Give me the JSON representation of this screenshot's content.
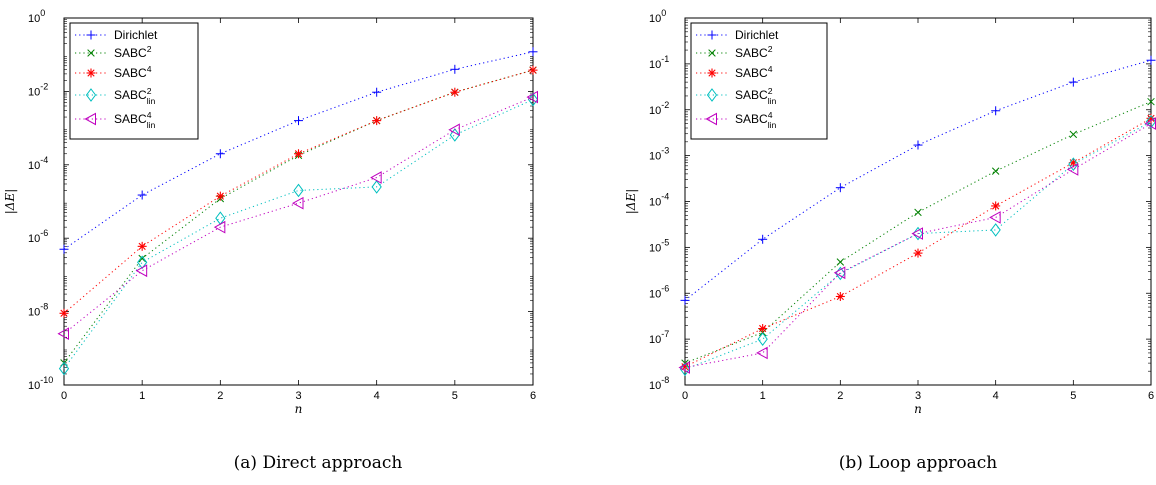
{
  "chart_data": [
    {
      "type": "line",
      "subtitle": "(a) Direct approach",
      "xlabel": "n",
      "ylabel": "|ΔE|",
      "xlim": [
        0,
        6
      ],
      "ylim": [
        1e-10,
        1
      ],
      "yscale": "log",
      "x_ticks": [
        "0",
        "1",
        "2",
        "3",
        "4",
        "5",
        "6"
      ],
      "y_ticks": [
        {
          "base": "10",
          "exp": "0",
          "v": 1
        },
        {
          "base": "10",
          "exp": "-2",
          "v": 0.01
        },
        {
          "base": "10",
          "exp": "-4",
          "v": 0.0001
        },
        {
          "base": "10",
          "exp": "-6",
          "v": 1e-06
        },
        {
          "base": "10",
          "exp": "-8",
          "v": 1e-08
        },
        {
          "base": "10",
          "exp": "-10",
          "v": 1e-10
        }
      ],
      "grid": false,
      "legend_position": "top-left",
      "x": [
        0,
        1,
        2,
        3,
        4,
        5,
        6
      ],
      "series": [
        {
          "name": "Dirichlet",
          "base": "SABC",
          "sup": "",
          "sub": "",
          "marker": "plus",
          "color": "#0000ff",
          "values": [
            5e-07,
            1.5e-05,
            0.0002,
            0.0016,
            0.0095,
            0.04,
            0.12
          ]
        },
        {
          "name": "SABC2",
          "base": "SABC",
          "sup": "2",
          "sub": "",
          "marker": "x",
          "color": "#008000",
          "values": [
            4e-10,
            2.8e-07,
            1.2e-05,
            0.00018,
            0.0016,
            0.0095,
            0.038
          ]
        },
        {
          "name": "SABC4",
          "base": "SABC",
          "sup": "4",
          "sub": "",
          "marker": "star",
          "color": "#ff0000",
          "values": [
            9e-09,
            6e-07,
            1.4e-05,
            0.0002,
            0.0016,
            0.0095,
            0.038
          ]
        },
        {
          "name": "SABC2lin",
          "base": "SABC",
          "sup": "2",
          "sub": "lin",
          "marker": "diamond",
          "color": "#00bfbf",
          "values": [
            2.8e-10,
            2.2e-07,
            3.5e-06,
            2e-05,
            2.5e-05,
            0.00065,
            0.006
          ]
        },
        {
          "name": "SABC4lin",
          "base": "SABC",
          "sup": "4",
          "sub": "lin",
          "marker": "triangle-left",
          "color": "#bf00bf",
          "values": [
            2.5e-09,
            1.3e-07,
            2e-06,
            9e-06,
            4.5e-05,
            0.0009,
            0.007
          ]
        }
      ]
    },
    {
      "type": "line",
      "subtitle": "(b) Loop approach",
      "xlabel": "n",
      "ylabel": "|ΔE|",
      "xlim": [
        0,
        6
      ],
      "ylim": [
        1e-08,
        1
      ],
      "yscale": "log",
      "x_ticks": [
        "0",
        "1",
        "2",
        "3",
        "4",
        "5",
        "6"
      ],
      "y_ticks": [
        {
          "base": "10",
          "exp": "0",
          "v": 1
        },
        {
          "base": "10",
          "exp": "-1",
          "v": 0.1
        },
        {
          "base": "10",
          "exp": "-2",
          "v": 0.01
        },
        {
          "base": "10",
          "exp": "-3",
          "v": 0.001
        },
        {
          "base": "10",
          "exp": "-4",
          "v": 0.0001
        },
        {
          "base": "10",
          "exp": "-5",
          "v": 1e-05
        },
        {
          "base": "10",
          "exp": "-6",
          "v": 1e-06
        },
        {
          "base": "10",
          "exp": "-7",
          "v": 1e-07
        },
        {
          "base": "10",
          "exp": "-8",
          "v": 1e-08
        }
      ],
      "grid": false,
      "legend_position": "top-left",
      "x": [
        0,
        1,
        2,
        3,
        4,
        5,
        6
      ],
      "series": [
        {
          "name": "Dirichlet",
          "base": "SABC",
          "sup": "",
          "sub": "",
          "marker": "plus",
          "color": "#0000ff",
          "values": [
            7e-07,
            1.5e-05,
            0.0002,
            0.0017,
            0.0095,
            0.04,
            0.12
          ]
        },
        {
          "name": "SABC2",
          "base": "SABC",
          "sup": "2",
          "sub": "",
          "marker": "x",
          "color": "#008000",
          "values": [
            3e-08,
            1.4e-07,
            4.8e-06,
            5.8e-05,
            0.00046,
            0.0029,
            0.015
          ]
        },
        {
          "name": "SABC4",
          "base": "SABC",
          "sup": "4",
          "sub": "",
          "marker": "star",
          "color": "#ff0000",
          "values": [
            2.5e-08,
            1.7e-07,
            8.5e-07,
            7.5e-06,
            8e-05,
            0.0007,
            0.0065
          ]
        },
        {
          "name": "SABC2lin",
          "base": "SABC",
          "sup": "2",
          "sub": "lin",
          "marker": "diamond",
          "color": "#00bfbf",
          "values": [
            2.2e-08,
            1e-07,
            2.7e-06,
            2e-05,
            2.4e-05,
            0.00065,
            0.0055
          ]
        },
        {
          "name": "SABC4lin",
          "base": "SABC",
          "sup": "4",
          "sub": "lin",
          "marker": "triangle-left",
          "color": "#bf00bf",
          "values": [
            2.4e-08,
            5e-08,
            2.8e-06,
            2e-05,
            4.5e-05,
            0.0005,
            0.005
          ]
        }
      ]
    }
  ]
}
